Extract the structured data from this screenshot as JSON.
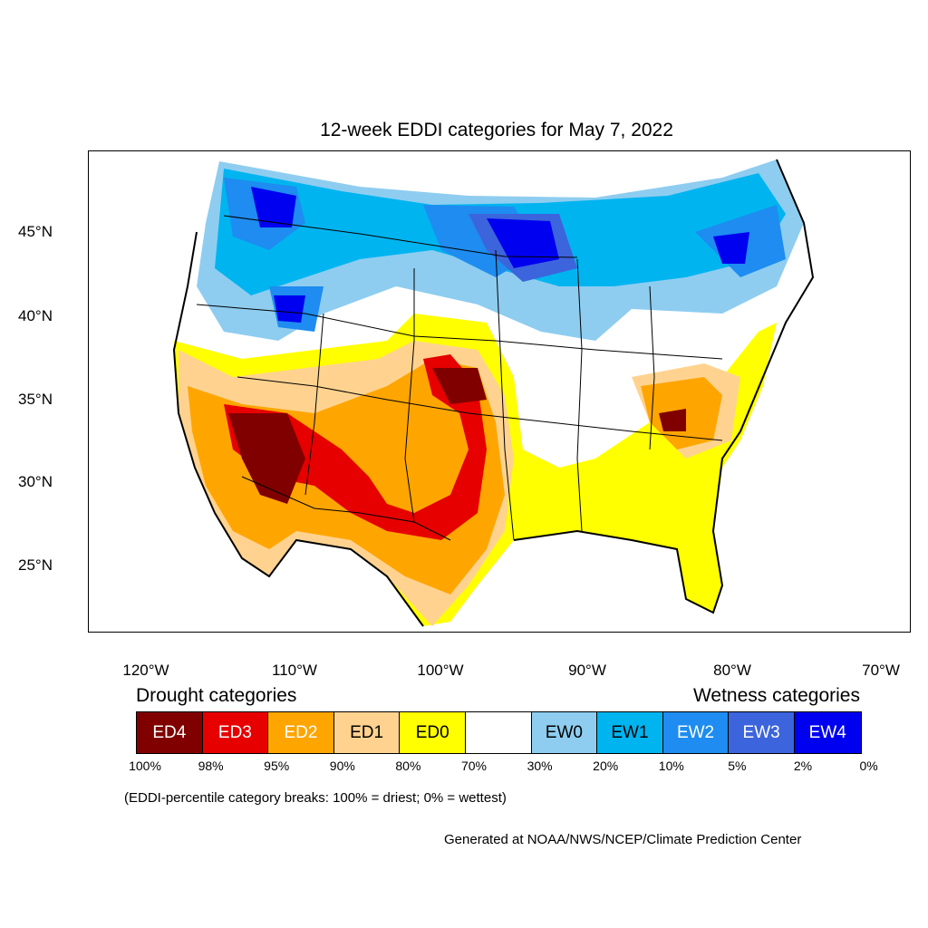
{
  "title": "12-week EDDI categories for May 7, 2022",
  "lat_labels": [
    "45°N",
    "40°N",
    "35°N",
    "30°N",
    "25°N"
  ],
  "lon_labels": [
    "120°W",
    "110°W",
    "100°W",
    "90°W",
    "80°W",
    "70°W"
  ],
  "legend": {
    "drought_heading": "Drought categories",
    "wetness_heading": "Wetness categories",
    "categories": [
      {
        "label": "ED4",
        "color": "#800000",
        "text_color": "#ffffff"
      },
      {
        "label": "ED3",
        "color": "#e60000",
        "text_color": "#ffffff"
      },
      {
        "label": "ED2",
        "color": "#ffa500",
        "text_color": "#ffffff"
      },
      {
        "label": "ED1",
        "color": "#ffd38f",
        "text_color": "#000000"
      },
      {
        "label": "ED0",
        "color": "#ffff00",
        "text_color": "#000000"
      },
      {
        "label": "",
        "color": "#ffffff",
        "text_color": "#000000"
      },
      {
        "label": "EW0",
        "color": "#8ecdf0",
        "text_color": "#000000"
      },
      {
        "label": "EW1",
        "color": "#00b4f0",
        "text_color": "#000000"
      },
      {
        "label": "EW2",
        "color": "#1e8cf0",
        "text_color": "#ffffff"
      },
      {
        "label": "EW3",
        "color": "#3c64dc",
        "text_color": "#ffffff"
      },
      {
        "label": "EW4",
        "color": "#0000f0",
        "text_color": "#ffffff"
      }
    ],
    "breaks": [
      "100%",
      "98%",
      "95%",
      "90%",
      "80%",
      "70%",
      "30%",
      "20%",
      "10%",
      "5%",
      "2%",
      "0%"
    ]
  },
  "note": "(EDDI-percentile category breaks: 100% = driest; 0% = wettest)",
  "credit": "Generated at NOAA/NWS/NCEP/Climate Prediction Center"
}
